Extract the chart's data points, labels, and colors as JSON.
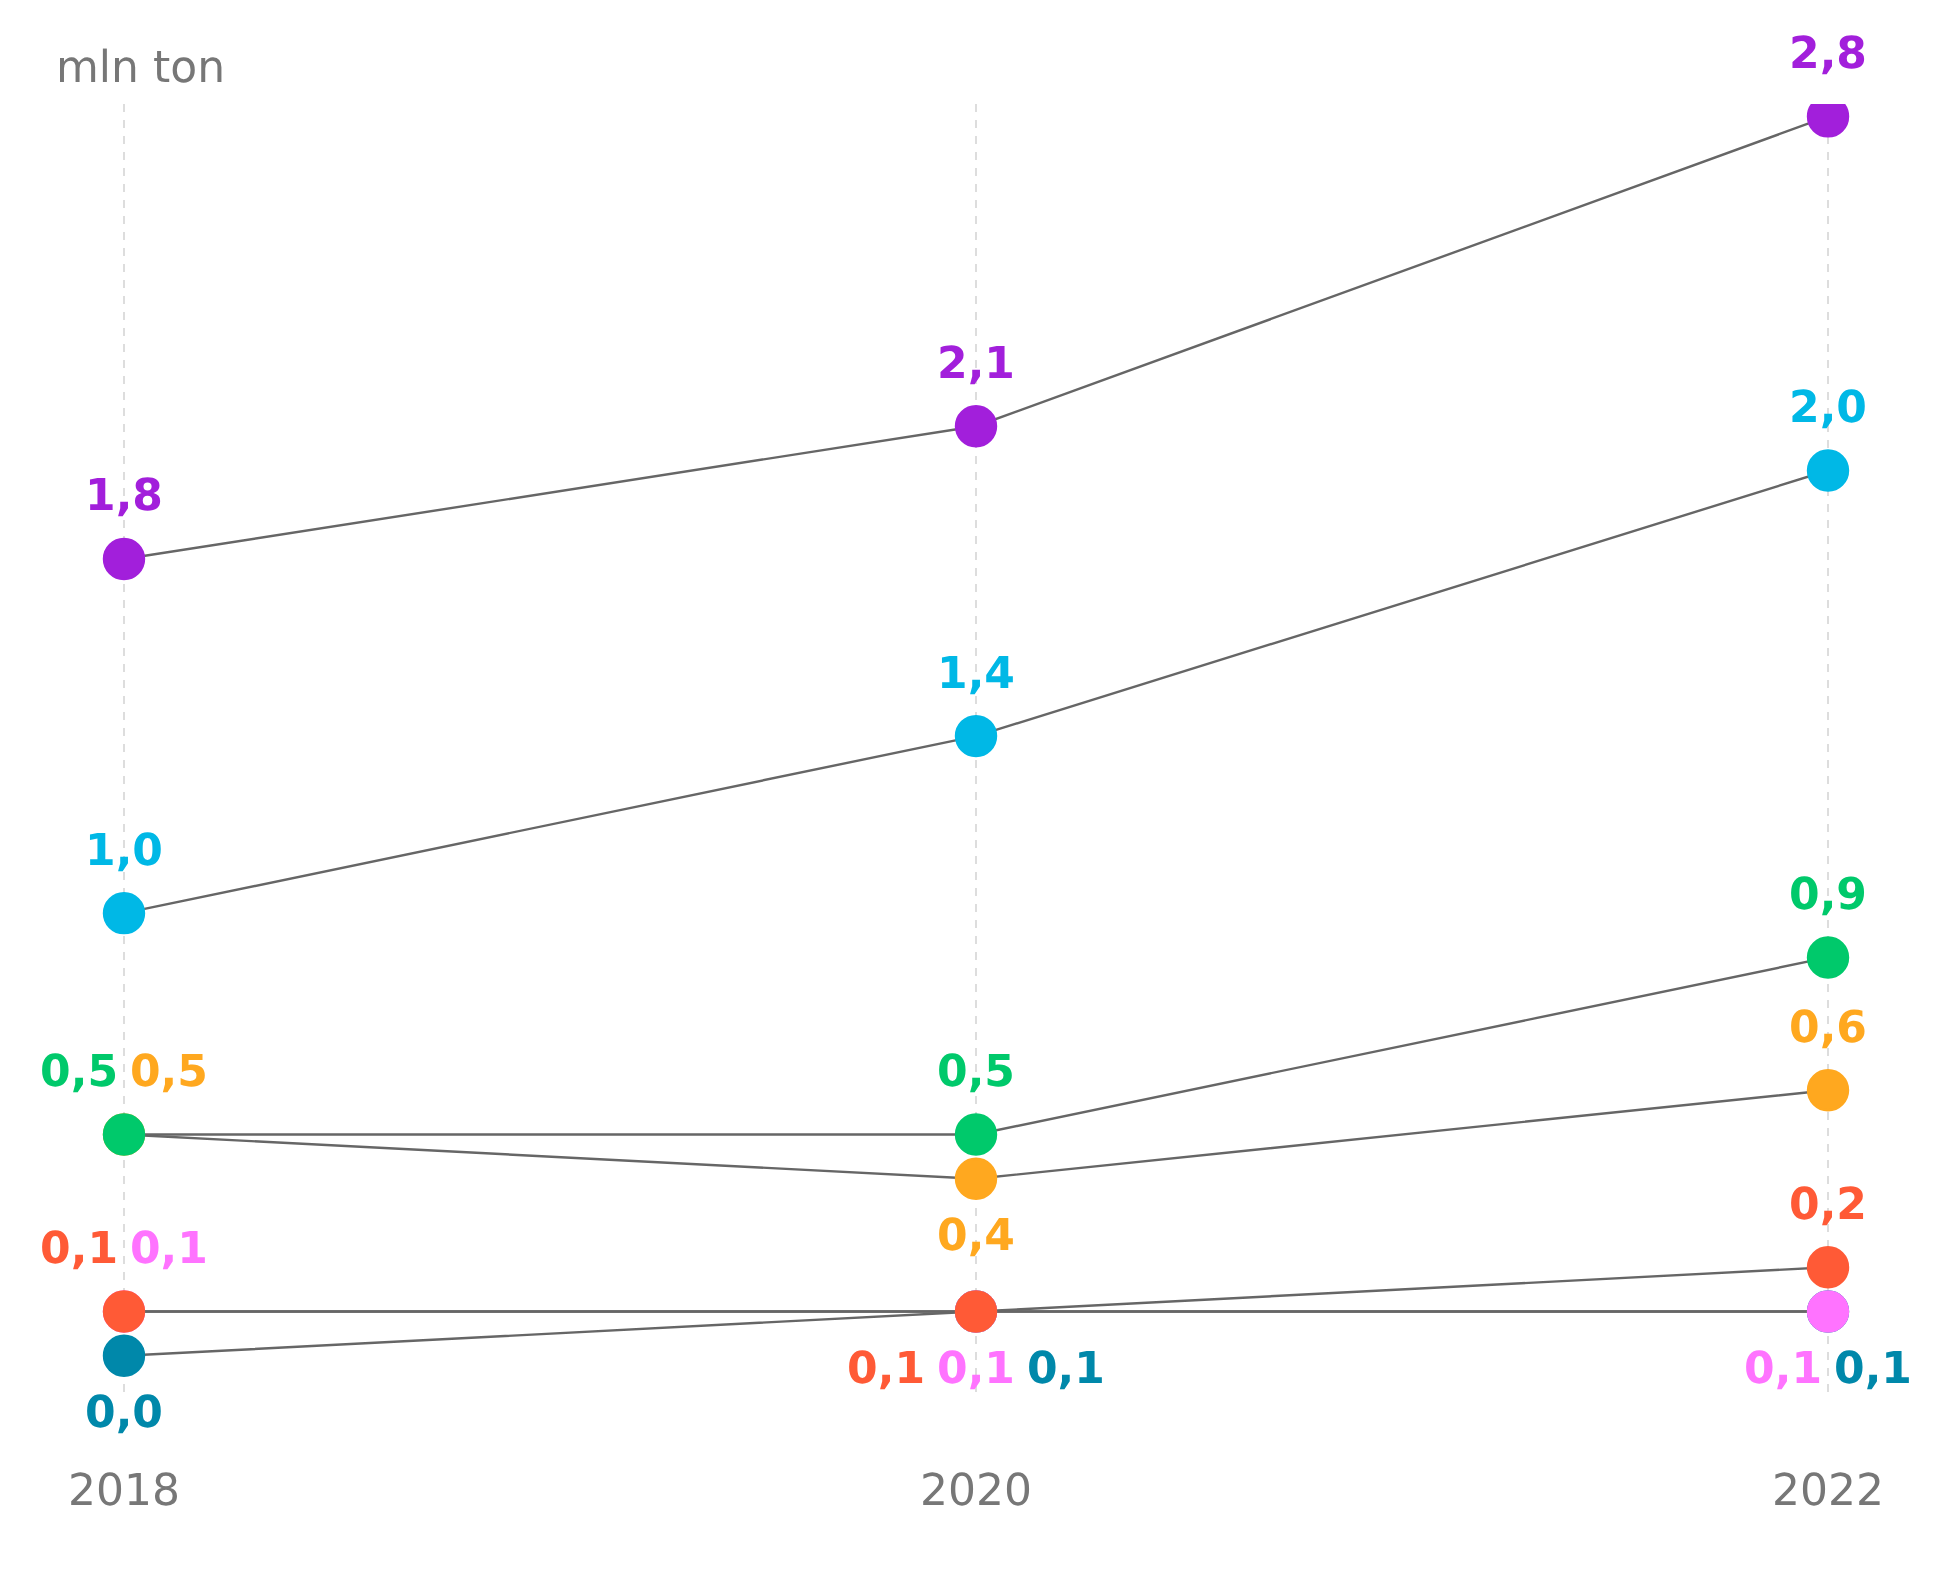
{
  "chart_data": {
    "type": "line",
    "ylabel": "mln ton",
    "categories": [
      "2018",
      "2020",
      "2022"
    ],
    "series": [
      {
        "color": "#a21fdb",
        "values": [
          1.8,
          2.1,
          2.8
        ],
        "value_labels": [
          "1,8",
          "2,1",
          "2,8"
        ]
      },
      {
        "color": "#00b8e6",
        "values": [
          1.0,
          1.4,
          2.0
        ],
        "value_labels": [
          "1,0",
          "1,4",
          "2,0"
        ]
      },
      {
        "color": "#00c96b",
        "values": [
          0.5,
          0.5,
          0.9
        ],
        "value_labels": [
          "0,5",
          "0,5",
          "0,9"
        ]
      },
      {
        "color": "#ffa81f",
        "values": [
          0.5,
          0.4,
          0.6
        ],
        "value_labels": [
          "0,5",
          "0,4",
          "0,6"
        ]
      },
      {
        "color": "#ff5a36",
        "values": [
          0.1,
          0.1,
          0.2
        ],
        "value_labels": [
          "0,1",
          "0,1",
          "0,2"
        ]
      },
      {
        "color": "#ff73ff",
        "values": [
          0.1,
          0.1,
          0.1
        ],
        "value_labels": [
          "0,1",
          "0,1",
          "0,1"
        ]
      },
      {
        "color": "#0088aa",
        "values": [
          0.0,
          0.1,
          0.1
        ],
        "value_labels": [
          "0,0",
          "0,1",
          "0,1"
        ]
      }
    ],
    "grid": "x",
    "tick_labels": "x",
    "marker": "circle",
    "line_style": "solid",
    "legend": false
  }
}
